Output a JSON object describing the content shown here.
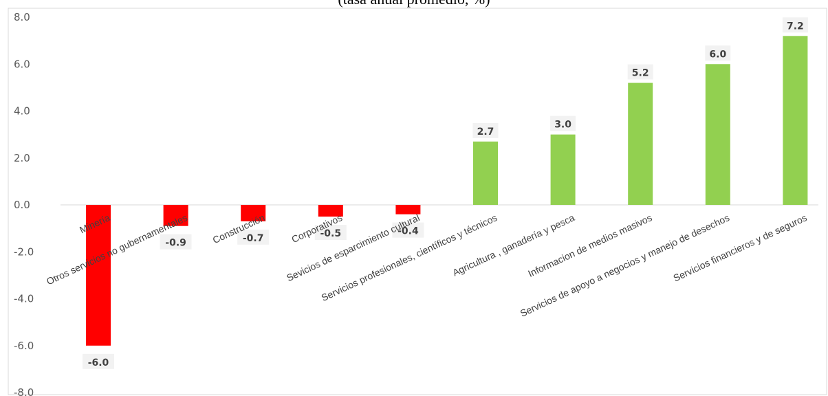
{
  "chart_data": {
    "type": "bar",
    "title": "(tasa anual promedio, %)",
    "categories": [
      "Minería",
      "Otros servicios no gubernamentales",
      "Construcción",
      "Corporativos",
      "Sevicios de esparcimiento cultural",
      "Servicios profesionales, científicos y técnicos",
      "Agricultura , ganadería y pesca",
      "Informacion de medios masivos",
      "Servicios de apoyo a negocios y manejo de desechos",
      "Servicios financieros y de seguros"
    ],
    "values": [
      -6.0,
      -0.9,
      -0.7,
      -0.5,
      -0.4,
      2.7,
      3.0,
      5.2,
      6.0,
      7.2
    ],
    "value_labels": [
      "-6.0",
      "-0.9",
      "-0.7",
      "-0.5",
      "-0.4",
      "2.7",
      "3.0",
      "5.2",
      "6.0",
      "7.2"
    ],
    "ylim": [
      -8,
      8
    ],
    "yticks": [
      "8.0",
      "6.0",
      "4.0",
      "2.0",
      "0.0",
      "-2.0",
      "-4.0",
      "-6.0",
      "-8.0"
    ],
    "xlabel": "",
    "ylabel": "",
    "grid": false,
    "colors": {
      "negative": "#ff0000",
      "positive": "#92d050",
      "label_box": "#f2f2f2",
      "frame": "#d9d9d9"
    }
  }
}
